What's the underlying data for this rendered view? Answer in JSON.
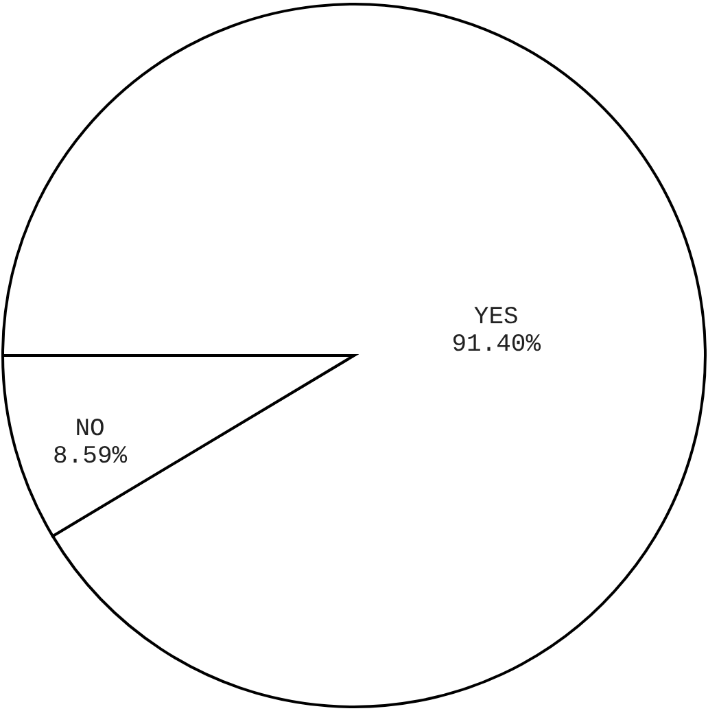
{
  "chart_data": {
    "type": "pie",
    "categories": [
      "YES",
      "NO"
    ],
    "values": [
      91.4,
      8.59
    ],
    "colors": [
      "#ffffff",
      "#ffffff"
    ],
    "value_labels": [
      "91.40%",
      "8.59%"
    ]
  }
}
